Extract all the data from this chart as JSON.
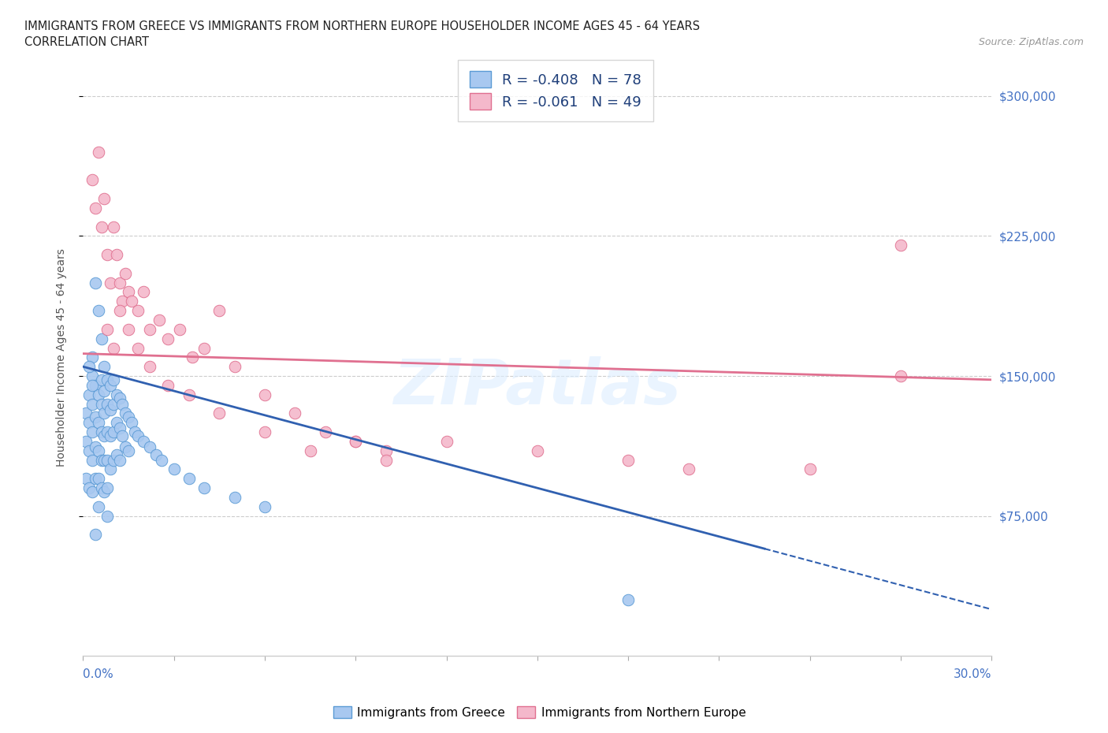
{
  "title_line1": "IMMIGRANTS FROM GREECE VS IMMIGRANTS FROM NORTHERN EUROPE HOUSEHOLDER INCOME AGES 45 - 64 YEARS",
  "title_line2": "CORRELATION CHART",
  "source": "Source: ZipAtlas.com",
  "ylabel": "Householder Income Ages 45 - 64 years",
  "ytick_values": [
    75000,
    150000,
    225000,
    300000
  ],
  "ymin": 0,
  "ymax": 320000,
  "xmin": 0.0,
  "xmax": 0.3,
  "greece_color": "#a8c8f0",
  "greece_edge_color": "#5b9bd5",
  "northern_europe_color": "#f4b8cb",
  "northern_europe_edge_color": "#e07090",
  "greece_line_color": "#3060b0",
  "northern_europe_line_color": "#e07090",
  "greece_R": -0.408,
  "greece_N": 78,
  "northern_europe_R": -0.061,
  "northern_europe_N": 49,
  "legend_text_color": "#1f3f7a",
  "watermark": "ZIPatlas",
  "greece_scatter_x": [
    0.001,
    0.001,
    0.001,
    0.002,
    0.002,
    0.002,
    0.002,
    0.003,
    0.003,
    0.003,
    0.003,
    0.003,
    0.004,
    0.004,
    0.004,
    0.004,
    0.005,
    0.005,
    0.005,
    0.005,
    0.005,
    0.006,
    0.006,
    0.006,
    0.006,
    0.006,
    0.007,
    0.007,
    0.007,
    0.007,
    0.007,
    0.007,
    0.008,
    0.008,
    0.008,
    0.008,
    0.008,
    0.009,
    0.009,
    0.009,
    0.009,
    0.01,
    0.01,
    0.01,
    0.01,
    0.011,
    0.011,
    0.011,
    0.012,
    0.012,
    0.012,
    0.013,
    0.013,
    0.014,
    0.014,
    0.015,
    0.015,
    0.016,
    0.017,
    0.018,
    0.02,
    0.022,
    0.024,
    0.026,
    0.03,
    0.035,
    0.04,
    0.05,
    0.06,
    0.008,
    0.004,
    0.005,
    0.006,
    0.003,
    0.002,
    0.003,
    0.18,
    0.004
  ],
  "greece_scatter_y": [
    130000,
    115000,
    95000,
    140000,
    125000,
    110000,
    90000,
    150000,
    135000,
    120000,
    105000,
    88000,
    145000,
    128000,
    112000,
    95000,
    140000,
    125000,
    110000,
    95000,
    80000,
    148000,
    135000,
    120000,
    105000,
    90000,
    155000,
    142000,
    130000,
    118000,
    105000,
    88000,
    148000,
    135000,
    120000,
    105000,
    90000,
    145000,
    132000,
    118000,
    100000,
    148000,
    135000,
    120000,
    105000,
    140000,
    125000,
    108000,
    138000,
    122000,
    105000,
    135000,
    118000,
    130000,
    112000,
    128000,
    110000,
    125000,
    120000,
    118000,
    115000,
    112000,
    108000,
    105000,
    100000,
    95000,
    90000,
    85000,
    80000,
    75000,
    200000,
    185000,
    170000,
    160000,
    155000,
    145000,
    30000,
    65000
  ],
  "northern_scatter_x": [
    0.003,
    0.004,
    0.005,
    0.006,
    0.007,
    0.008,
    0.009,
    0.01,
    0.011,
    0.012,
    0.013,
    0.014,
    0.015,
    0.016,
    0.018,
    0.02,
    0.022,
    0.025,
    0.028,
    0.032,
    0.036,
    0.04,
    0.045,
    0.05,
    0.06,
    0.07,
    0.08,
    0.09,
    0.1,
    0.27,
    0.008,
    0.01,
    0.012,
    0.015,
    0.018,
    0.022,
    0.028,
    0.035,
    0.045,
    0.06,
    0.075,
    0.09,
    0.1,
    0.12,
    0.15,
    0.18,
    0.2,
    0.24,
    0.27
  ],
  "northern_scatter_y": [
    255000,
    240000,
    270000,
    230000,
    245000,
    215000,
    200000,
    230000,
    215000,
    200000,
    190000,
    205000,
    195000,
    190000,
    185000,
    195000,
    175000,
    180000,
    170000,
    175000,
    160000,
    165000,
    185000,
    155000,
    140000,
    130000,
    120000,
    115000,
    110000,
    150000,
    175000,
    165000,
    185000,
    175000,
    165000,
    155000,
    145000,
    140000,
    130000,
    120000,
    110000,
    115000,
    105000,
    115000,
    110000,
    105000,
    100000,
    100000,
    220000
  ]
}
